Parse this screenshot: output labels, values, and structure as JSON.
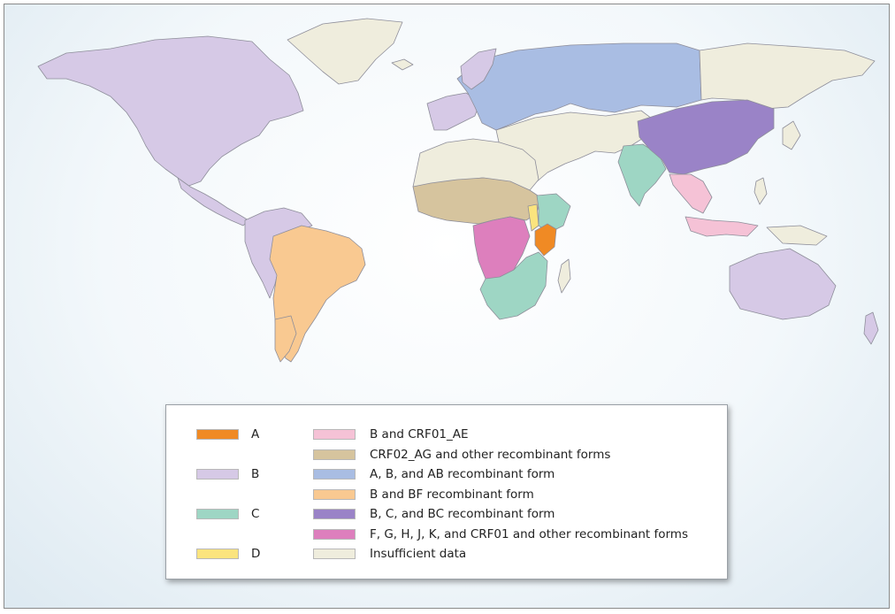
{
  "legend": {
    "left_items": [
      {
        "label": "A",
        "color": "#f08a24"
      },
      {
        "label": "B",
        "color": "#d6c9e6"
      },
      {
        "label": "C",
        "color": "#9ed6c4"
      },
      {
        "label": "D",
        "color": "#fbe47e"
      }
    ],
    "right_items": [
      {
        "label": "B and CRF01_AE",
        "color": "#f5c2d6"
      },
      {
        "label": "CRF02_AG and other recombinant forms",
        "color": "#d6c49e"
      },
      {
        "label": "A, B, and AB recombinant form",
        "color": "#a9bde3"
      },
      {
        "label": "B and BF recombinant form",
        "color": "#f9c991"
      },
      {
        "label": "B, C, and BC recombinant form",
        "color": "#9a83c7"
      },
      {
        "label": "F, G, H, J, K, and CRF01 and other recombinant forms",
        "color": "#dd7fbd"
      },
      {
        "label": "Insufficient data",
        "color": "#efeddd"
      }
    ]
  },
  "colors": {
    "border": "#8a8a8a",
    "ocean_center": "#ffffff",
    "ocean_edge": "#dde9f1"
  }
}
